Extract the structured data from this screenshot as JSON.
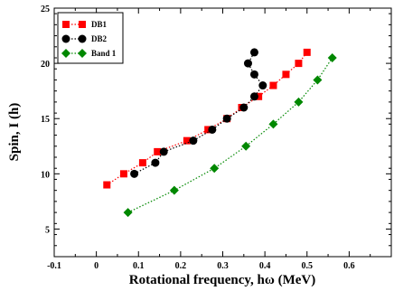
{
  "chart_data": {
    "type": "scatter",
    "title": "",
    "xlabel": "Rotational frequency, hω (MeV)",
    "ylabel": "Spin, I (h)",
    "xlim": [
      -0.1,
      0.7
    ],
    "ylim": [
      2.5,
      25
    ],
    "x_ticks": [
      "-0.1",
      "0",
      "0.1",
      "0.2",
      "0.3",
      "0.4",
      "0.5",
      "0.6"
    ],
    "y_ticks": [
      "5",
      "10",
      "15",
      "20",
      "25"
    ],
    "grid": false,
    "legend_position": "top-left",
    "series": [
      {
        "name": "DB1",
        "color": "#ff0000",
        "marker": "square",
        "line": "dotted",
        "x": [
          0.025,
          0.065,
          0.11,
          0.145,
          0.215,
          0.265,
          0.31,
          0.345,
          0.385,
          0.42,
          0.45,
          0.48,
          0.5
        ],
        "y": [
          9,
          10,
          11,
          12,
          13,
          14,
          15,
          16,
          17,
          18,
          19,
          20,
          21
        ]
      },
      {
        "name": "DB2",
        "color": "#000000",
        "marker": "circle",
        "line": "dotted",
        "x": [
          0.09,
          0.14,
          0.16,
          0.23,
          0.275,
          0.31,
          0.35,
          0.375,
          0.395,
          0.375,
          0.36,
          0.375
        ],
        "y": [
          10,
          11,
          12,
          13,
          14,
          15,
          16,
          17,
          18,
          19,
          20,
          21
        ]
      },
      {
        "name": "Band  1",
        "color": "#008800",
        "marker": "diamond",
        "line": "dotted",
        "x": [
          0.075,
          0.185,
          0.28,
          0.355,
          0.42,
          0.48,
          0.525,
          0.56
        ],
        "y": [
          6.5,
          8.5,
          10.5,
          12.5,
          14.5,
          16.5,
          18.5,
          20.5
        ]
      }
    ]
  }
}
